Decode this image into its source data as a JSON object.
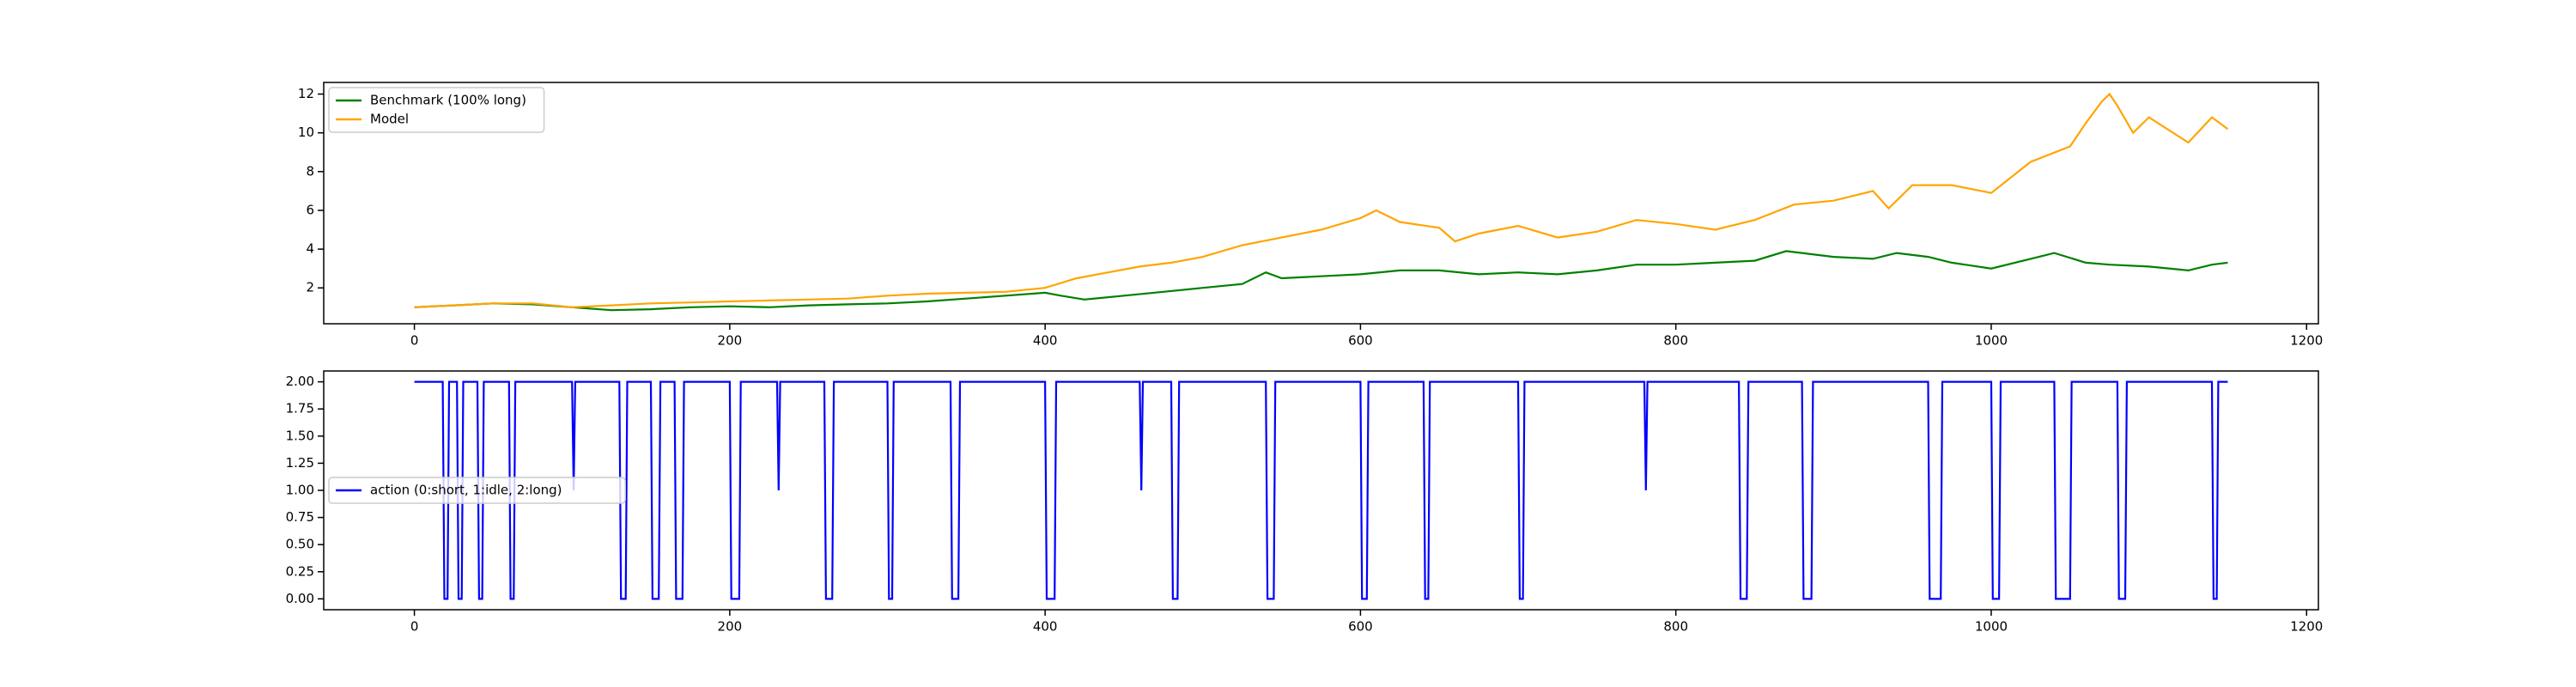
{
  "chart_data": [
    {
      "type": "line",
      "xlim": [
        -57.5,
        1207.5
      ],
      "xticks": [
        0,
        200,
        400,
        600,
        800,
        1000,
        1200
      ],
      "ylim": [
        0.15,
        12.6
      ],
      "yticks": [
        2,
        4,
        6,
        8,
        10,
        12
      ],
      "legend": "upper left",
      "series": [
        {
          "name": "Benchmark (100% long)",
          "color": "green",
          "x": [
            0,
            25,
            50,
            75,
            100,
            125,
            150,
            175,
            200,
            225,
            250,
            275,
            300,
            325,
            350,
            375,
            400,
            410,
            425,
            450,
            475,
            500,
            525,
            540,
            550,
            575,
            600,
            625,
            650,
            675,
            700,
            725,
            750,
            775,
            800,
            825,
            850,
            870,
            900,
            925,
            940,
            960,
            975,
            1000,
            1025,
            1040,
            1060,
            1075,
            1100,
            1125,
            1140,
            1150
          ],
          "values": [
            1.0,
            1.1,
            1.2,
            1.15,
            1.0,
            0.85,
            0.9,
            1.0,
            1.05,
            1.0,
            1.1,
            1.15,
            1.2,
            1.3,
            1.45,
            1.6,
            1.75,
            1.6,
            1.4,
            1.6,
            1.8,
            2.0,
            2.2,
            2.8,
            2.5,
            2.6,
            2.7,
            2.9,
            2.9,
            2.7,
            2.8,
            2.7,
            2.9,
            3.2,
            3.2,
            3.3,
            3.4,
            3.9,
            3.6,
            3.5,
            3.8,
            3.6,
            3.3,
            3.0,
            3.5,
            3.8,
            3.3,
            3.2,
            3.1,
            2.9,
            3.2,
            3.3
          ]
        },
        {
          "name": "Model",
          "color": "orange",
          "x": [
            0,
            25,
            50,
            75,
            100,
            125,
            150,
            175,
            200,
            225,
            250,
            275,
            300,
            325,
            350,
            375,
            400,
            420,
            440,
            460,
            480,
            500,
            525,
            550,
            575,
            600,
            610,
            625,
            650,
            660,
            675,
            700,
            725,
            750,
            775,
            800,
            825,
            850,
            875,
            900,
            925,
            935,
            950,
            975,
            1000,
            1025,
            1050,
            1060,
            1070,
            1075,
            1080,
            1090,
            1100,
            1125,
            1140,
            1150
          ],
          "values": [
            1.0,
            1.1,
            1.2,
            1.2,
            1.0,
            1.1,
            1.2,
            1.25,
            1.3,
            1.35,
            1.4,
            1.45,
            1.6,
            1.7,
            1.75,
            1.8,
            2.0,
            2.5,
            2.8,
            3.1,
            3.3,
            3.6,
            4.2,
            4.6,
            5.0,
            5.6,
            6.0,
            5.4,
            5.1,
            4.4,
            4.8,
            5.2,
            4.6,
            4.9,
            5.5,
            5.3,
            5.0,
            5.5,
            6.3,
            6.5,
            7.0,
            6.1,
            7.3,
            7.3,
            6.9,
            8.5,
            9.3,
            10.5,
            11.6,
            12.0,
            11.4,
            10.0,
            10.8,
            9.5,
            10.8,
            10.2
          ]
        }
      ]
    },
    {
      "type": "line",
      "xlim": [
        -57.5,
        1207.5
      ],
      "xticks": [
        0,
        200,
        400,
        600,
        800,
        1000,
        1200
      ],
      "ylim": [
        -0.1,
        2.1
      ],
      "yticks": [
        {
          "value": 0,
          "label": "0.00"
        },
        {
          "value": 0.25,
          "label": "0.25"
        },
        {
          "value": 0.5,
          "label": "0.50"
        },
        {
          "value": 0.75,
          "label": "0.75"
        },
        {
          "value": 1,
          "label": "1.00"
        },
        {
          "value": 1.25,
          "label": "1.25"
        },
        {
          "value": 1.5,
          "label": "1.50"
        },
        {
          "value": 1.75,
          "label": "1.75"
        },
        {
          "value": 2,
          "label": "2.00"
        }
      ],
      "legend": "center left",
      "series": [
        {
          "name": "action (0:short, 1:idle, 2:long)",
          "color": "blue",
          "x": [
            0,
            18,
            19,
            21,
            22,
            27,
            28,
            30,
            31,
            40,
            41,
            43,
            44,
            60,
            61,
            63,
            64,
            100,
            101,
            102,
            130,
            131,
            134,
            135,
            150,
            151,
            155,
            156,
            165,
            166,
            170,
            171,
            200,
            201,
            206,
            207,
            230,
            231,
            232,
            260,
            261,
            265,
            266,
            300,
            301,
            303,
            304,
            340,
            341,
            345,
            346,
            400,
            401,
            406,
            407,
            460,
            461,
            462,
            480,
            481,
            484,
            485,
            540,
            541,
            545,
            546,
            600,
            601,
            604,
            605,
            640,
            641,
            643,
            644,
            700,
            701,
            703,
            704,
            780,
            781,
            782,
            840,
            841,
            845,
            846,
            880,
            881,
            886,
            887,
            960,
            961,
            968,
            969,
            1000,
            1001,
            1005,
            1006,
            1040,
            1041,
            1050,
            1051,
            1080,
            1081,
            1085,
            1086,
            1140,
            1141,
            1143,
            1144,
            1150
          ],
          "values": [
            2,
            2,
            0,
            0,
            2,
            2,
            0,
            0,
            2,
            2,
            0,
            0,
            2,
            2,
            0,
            0,
            2,
            2,
            1,
            2,
            2,
            0,
            0,
            2,
            2,
            0,
            0,
            2,
            2,
            0,
            0,
            2,
            2,
            0,
            0,
            2,
            2,
            1,
            2,
            2,
            0,
            0,
            2,
            2,
            0,
            0,
            2,
            2,
            0,
            0,
            2,
            2,
            0,
            0,
            2,
            2,
            1,
            2,
            2,
            0,
            0,
            2,
            2,
            0,
            0,
            2,
            2,
            0,
            0,
            2,
            2,
            0,
            0,
            2,
            2,
            0,
            0,
            2,
            2,
            1,
            2,
            2,
            0,
            0,
            2,
            2,
            0,
            0,
            2,
            2,
            0,
            0,
            2,
            2,
            0,
            0,
            2,
            2,
            0,
            0,
            2,
            2,
            0,
            0,
            2,
            2,
            0,
            0,
            2,
            2
          ]
        }
      ]
    }
  ]
}
